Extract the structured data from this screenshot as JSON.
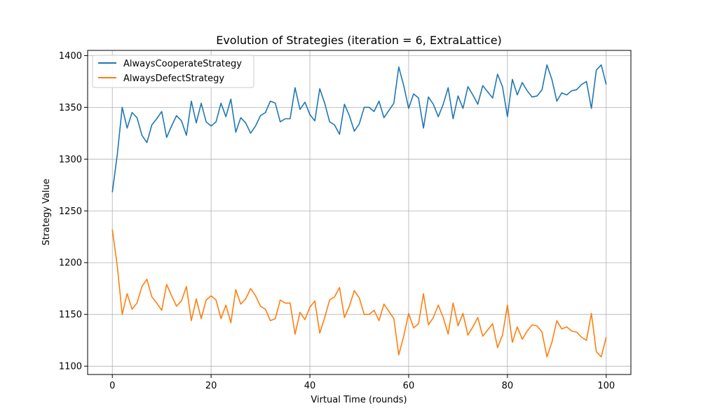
{
  "chart_data": {
    "type": "line",
    "title": "Evolution of Strategies (iteration = 6, ExtraLattice)",
    "xlabel": "Virtual Time (rounds)",
    "ylabel": "Strategy Value",
    "xlim": [
      -5,
      105
    ],
    "ylim": [
      1092,
      1405
    ],
    "xticks": [
      0,
      20,
      40,
      60,
      80,
      100
    ],
    "yticks": [
      1100,
      1150,
      1200,
      1250,
      1300,
      1350,
      1400
    ],
    "grid": true,
    "legend_position": "top-left",
    "series": [
      {
        "name": "AlwaysCooperateStrategy",
        "color": "#1f77b4",
        "values": [
          1268,
          1304,
          1350,
          1330,
          1345,
          1340,
          1323,
          1316,
          1333,
          1339,
          1346,
          1321,
          1332,
          1342,
          1337,
          1323,
          1356,
          1335,
          1354,
          1336,
          1332,
          1336,
          1354,
          1341,
          1358,
          1326,
          1340,
          1335,
          1325,
          1332,
          1342,
          1345,
          1356,
          1354,
          1336,
          1339,
          1339,
          1369,
          1348,
          1355,
          1343,
          1337,
          1368,
          1354,
          1336,
          1333,
          1324,
          1353,
          1342,
          1327,
          1334,
          1350,
          1350,
          1346,
          1356,
          1340,
          1347,
          1354,
          1389,
          1371,
          1349,
          1363,
          1359,
          1330,
          1360,
          1353,
          1341,
          1353,
          1369,
          1339,
          1361,
          1349,
          1370,
          1362,
          1353,
          1371,
          1365,
          1359,
          1382,
          1370,
          1341,
          1377,
          1362,
          1374,
          1366,
          1360,
          1361,
          1367,
          1391,
          1377,
          1356,
          1364,
          1362,
          1366,
          1367,
          1372,
          1375,
          1349,
          1386,
          1391,
          1372
        ]
      },
      {
        "name": "AlwaysDefectStrategy",
        "color": "#ff7f0e",
        "values": [
          1232,
          1197,
          1150,
          1170,
          1155,
          1161,
          1177,
          1184,
          1167,
          1161,
          1154,
          1179,
          1168,
          1158,
          1163,
          1177,
          1144,
          1165,
          1146,
          1164,
          1168,
          1164,
          1146,
          1159,
          1142,
          1174,
          1160,
          1165,
          1175,
          1168,
          1158,
          1155,
          1144,
          1146,
          1164,
          1161,
          1161,
          1131,
          1152,
          1145,
          1157,
          1163,
          1132,
          1147,
          1164,
          1167,
          1176,
          1147,
          1158,
          1173,
          1166,
          1150,
          1150,
          1154,
          1144,
          1160,
          1153,
          1146,
          1111,
          1129,
          1151,
          1137,
          1141,
          1170,
          1140,
          1147,
          1159,
          1147,
          1131,
          1161,
          1139,
          1151,
          1130,
          1138,
          1147,
          1129,
          1135,
          1141,
          1118,
          1130,
          1159,
          1123,
          1138,
          1126,
          1134,
          1140,
          1139,
          1133,
          1109,
          1123,
          1144,
          1136,
          1138,
          1134,
          1133,
          1128,
          1125,
          1151,
          1114,
          1109,
          1128
        ]
      }
    ]
  }
}
